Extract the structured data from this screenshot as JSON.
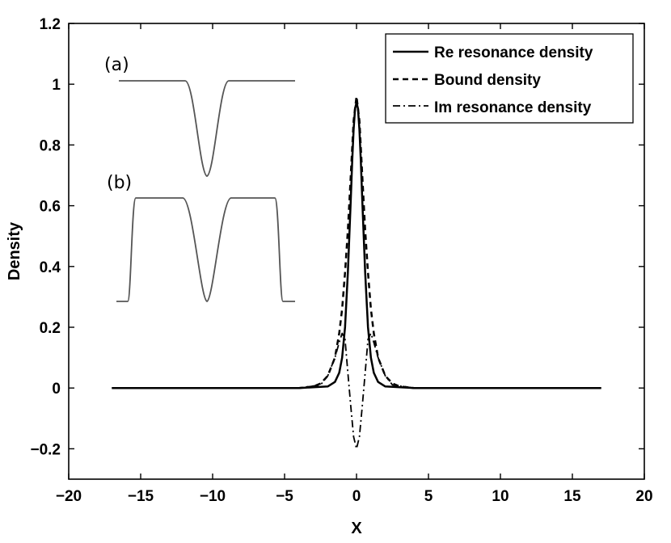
{
  "chart_data": {
    "type": "line",
    "xlabel": "X",
    "ylabel": "Density",
    "xlim": [
      -20,
      20
    ],
    "ylim": [
      -0.3,
      1.2
    ],
    "xticks": [
      -20,
      -15,
      -10,
      -5,
      0,
      5,
      10,
      15,
      20
    ],
    "xtick_labels": [
      "−20",
      "−15",
      "−10",
      "−5",
      "0",
      "5",
      "10",
      "15",
      "20"
    ],
    "yticks": [
      -0.2,
      0,
      0.2,
      0.4,
      0.6,
      0.8,
      1,
      1.2
    ],
    "ytick_labels": [
      "−0.2",
      "0",
      "0.2",
      "0.4",
      "0.6",
      "0.8",
      "1",
      "1.2"
    ],
    "grid": false,
    "legend_position": "top-right",
    "series": [
      {
        "name": "Re resonance density",
        "style": "solid",
        "x": [
          -17,
          -4,
          -2,
          -1.5,
          -1.2,
          -1,
          -0.8,
          -0.6,
          -0.5,
          -0.4,
          -0.3,
          -0.2,
          -0.1,
          0,
          0.1,
          0.2,
          0.3,
          0.4,
          0.5,
          0.6,
          0.8,
          1,
          1.2,
          1.5,
          2,
          4,
          17
        ],
        "y": [
          0,
          0,
          0.005,
          0.02,
          0.05,
          0.1,
          0.2,
          0.38,
          0.5,
          0.62,
          0.75,
          0.85,
          0.92,
          0.94,
          0.92,
          0.85,
          0.75,
          0.62,
          0.5,
          0.38,
          0.2,
          0.1,
          0.05,
          0.02,
          0.005,
          0,
          0
        ]
      },
      {
        "name": "Bound density",
        "style": "dashed",
        "x": [
          -17,
          -4,
          -3,
          -2.5,
          -2,
          -1.5,
          -1.2,
          -1,
          -0.8,
          -0.6,
          -0.4,
          -0.2,
          0,
          0.2,
          0.4,
          0.6,
          0.8,
          1,
          1.2,
          1.5,
          2,
          2.5,
          3,
          4,
          17
        ],
        "y": [
          0,
          0,
          0.005,
          0.015,
          0.04,
          0.1,
          0.18,
          0.26,
          0.38,
          0.52,
          0.7,
          0.88,
          0.96,
          0.88,
          0.7,
          0.52,
          0.38,
          0.26,
          0.18,
          0.1,
          0.04,
          0.015,
          0.005,
          0,
          0
        ]
      },
      {
        "name": "Im resonance density",
        "style": "dashdot",
        "x": [
          -17,
          -4,
          -2.5,
          -2,
          -1.5,
          -1.2,
          -1,
          -0.8,
          -0.6,
          -0.4,
          -0.2,
          0,
          0.2,
          0.4,
          0.6,
          0.8,
          1,
          1.2,
          1.5,
          2,
          2.5,
          4,
          17
        ],
        "y": [
          0,
          0,
          0.01,
          0.04,
          0.1,
          0.15,
          0.18,
          0.16,
          0.05,
          -0.06,
          -0.16,
          -0.2,
          -0.16,
          -0.06,
          0.05,
          0.16,
          0.18,
          0.15,
          0.1,
          0.04,
          0.01,
          0,
          0
        ]
      }
    ],
    "annotations": [
      "(a)",
      "(b)"
    ]
  }
}
